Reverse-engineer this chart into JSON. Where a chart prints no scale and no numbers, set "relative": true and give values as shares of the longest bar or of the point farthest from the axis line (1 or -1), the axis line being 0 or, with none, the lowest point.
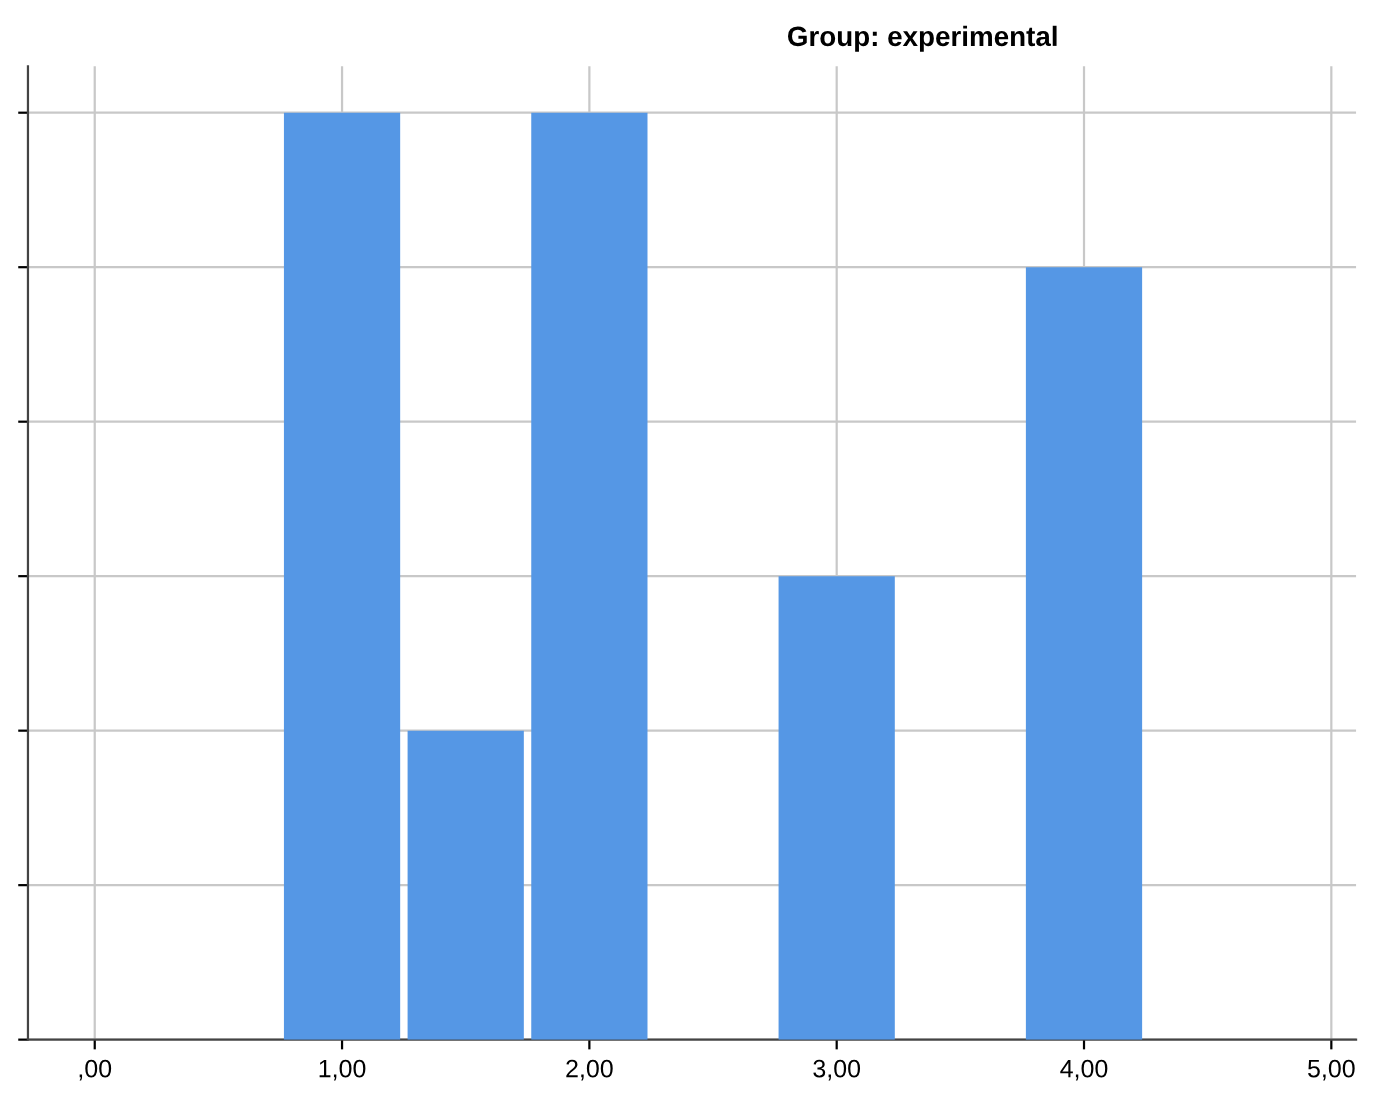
{
  "chart_data": {
    "type": "bar",
    "title": "Group: experimental",
    "relative": true,
    "x": [
      1,
      1.5,
      2,
      3,
      4
    ],
    "values": [
      1,
      0.3333,
      1,
      0.5,
      0.8333
    ],
    "color": "#5597e5",
    "grid": true,
    "tick_labels": "x",
    "xlim": [
      -0.27,
      5.1
    ],
    "xticks": [
      {
        "value": 0,
        "label": ",00"
      },
      {
        "value": 1,
        "label": "1,00"
      },
      {
        "value": 2,
        "label": "2,00"
      },
      {
        "value": 3,
        "label": "3,00"
      },
      {
        "value": 4,
        "label": "4,00"
      },
      {
        "value": 5,
        "label": "5,00"
      }
    ]
  }
}
